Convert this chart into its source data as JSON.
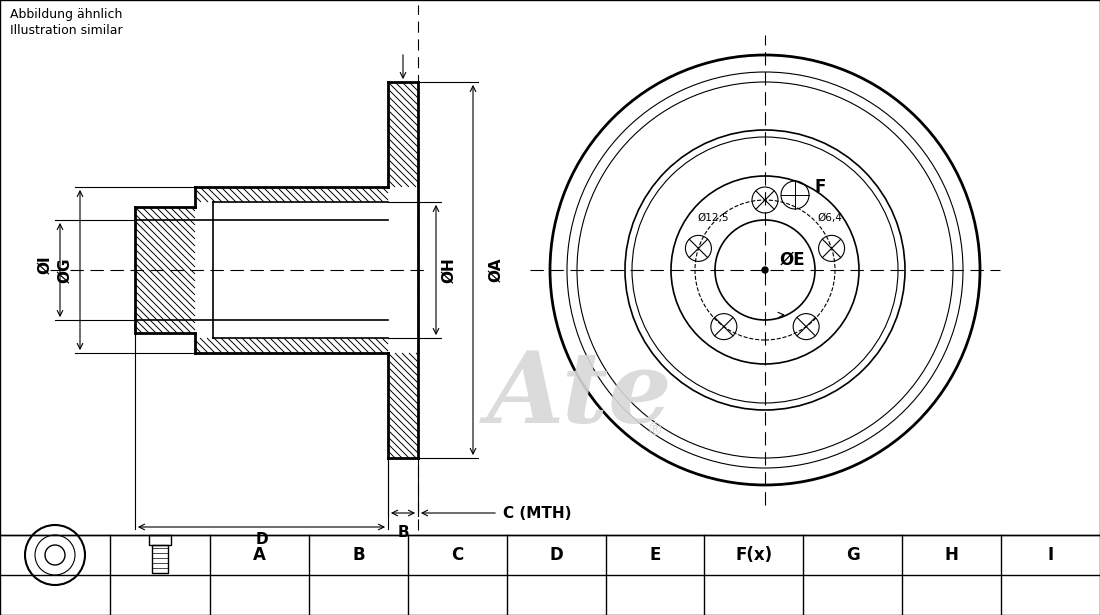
{
  "bg_color": "#ffffff",
  "title_text1": "Abbildung ähnlich",
  "title_text2": "Illustration similar",
  "label_A": "ØA",
  "label_B": "B",
  "label_C": "C (MTH)",
  "label_D": "D",
  "label_E": "ØE",
  "label_F": "F",
  "label_G": "ØG",
  "label_H": "ØH",
  "label_I": "ØI",
  "label_phi125": "Ø12,5",
  "label_phi64": "Ø6,4",
  "table_headers": [
    "A",
    "B",
    "C",
    "D",
    "E",
    "F(x)",
    "G",
    "H",
    "I"
  ],
  "line_color": "#000000",
  "watermark_color": "#d8d8d8"
}
